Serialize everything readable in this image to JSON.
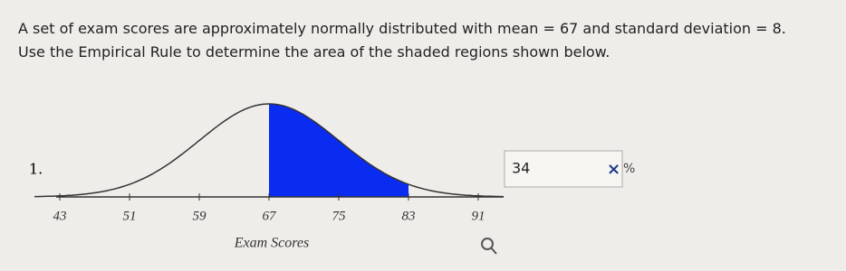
{
  "problem": {
    "line1": "A set of exam scores are approximately normally distributed with mean = 67 and standard deviation = 8.",
    "line2": "Use the Empirical Rule to determine the area of the shaded regions shown below."
  },
  "item": {
    "number": "1."
  },
  "figure": {
    "xticks": [
      43,
      51,
      59,
      67,
      75,
      83,
      91
    ],
    "xlabel": "Exam Scores"
  },
  "answer": {
    "value": "34",
    "mark": "×",
    "unit": "%"
  }
}
